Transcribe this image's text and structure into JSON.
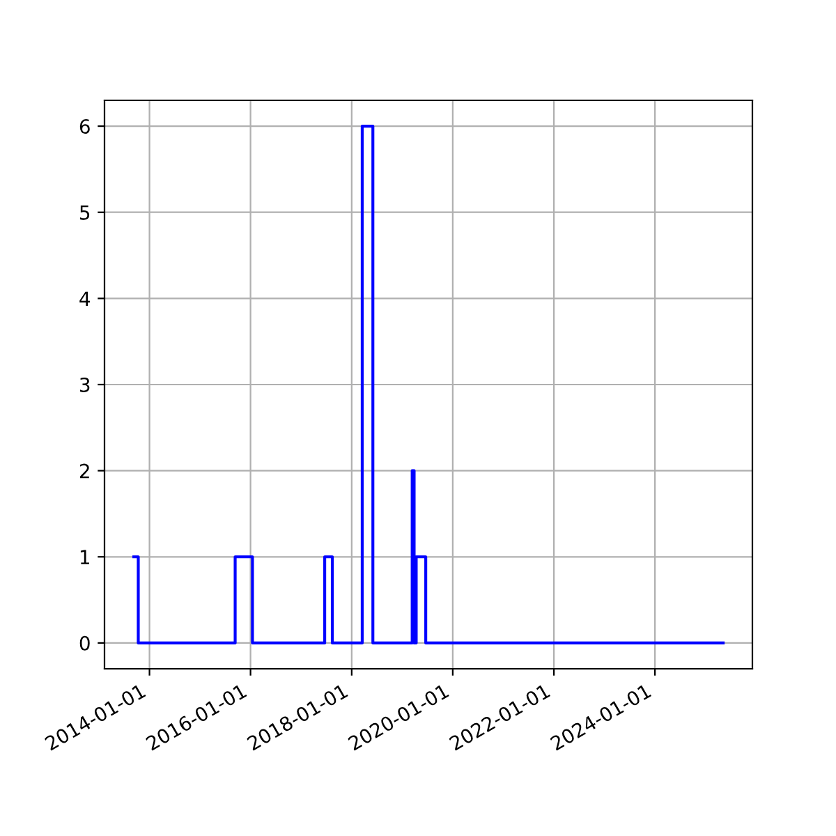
{
  "chart_data": {
    "type": "step",
    "x": [
      "2013-09-10",
      "2013-10-12",
      "2015-09-12",
      "2016-01-15",
      "2017-06-20",
      "2017-08-14",
      "2018-03-18",
      "2018-06-03",
      "2019-03-14",
      "2019-03-28",
      "2019-04-12",
      "2019-06-20",
      "2025-05-08"
    ],
    "series": [
      {
        "color": "#0000ff",
        "values": [
          1,
          0,
          1,
          0,
          1,
          0,
          6,
          0,
          2,
          0,
          1,
          0,
          0
        ]
      }
    ],
    "xlim": [
      "2013-02-10",
      "2025-12-05"
    ],
    "xticks": [
      "2014-01-01",
      "2016-01-01",
      "2018-01-01",
      "2020-01-01",
      "2022-01-01",
      "2024-01-01"
    ],
    "ylim": [
      -0.3,
      6.3
    ],
    "yticks": [
      0,
      1,
      2,
      3,
      4,
      5,
      6
    ],
    "grid": true
  }
}
